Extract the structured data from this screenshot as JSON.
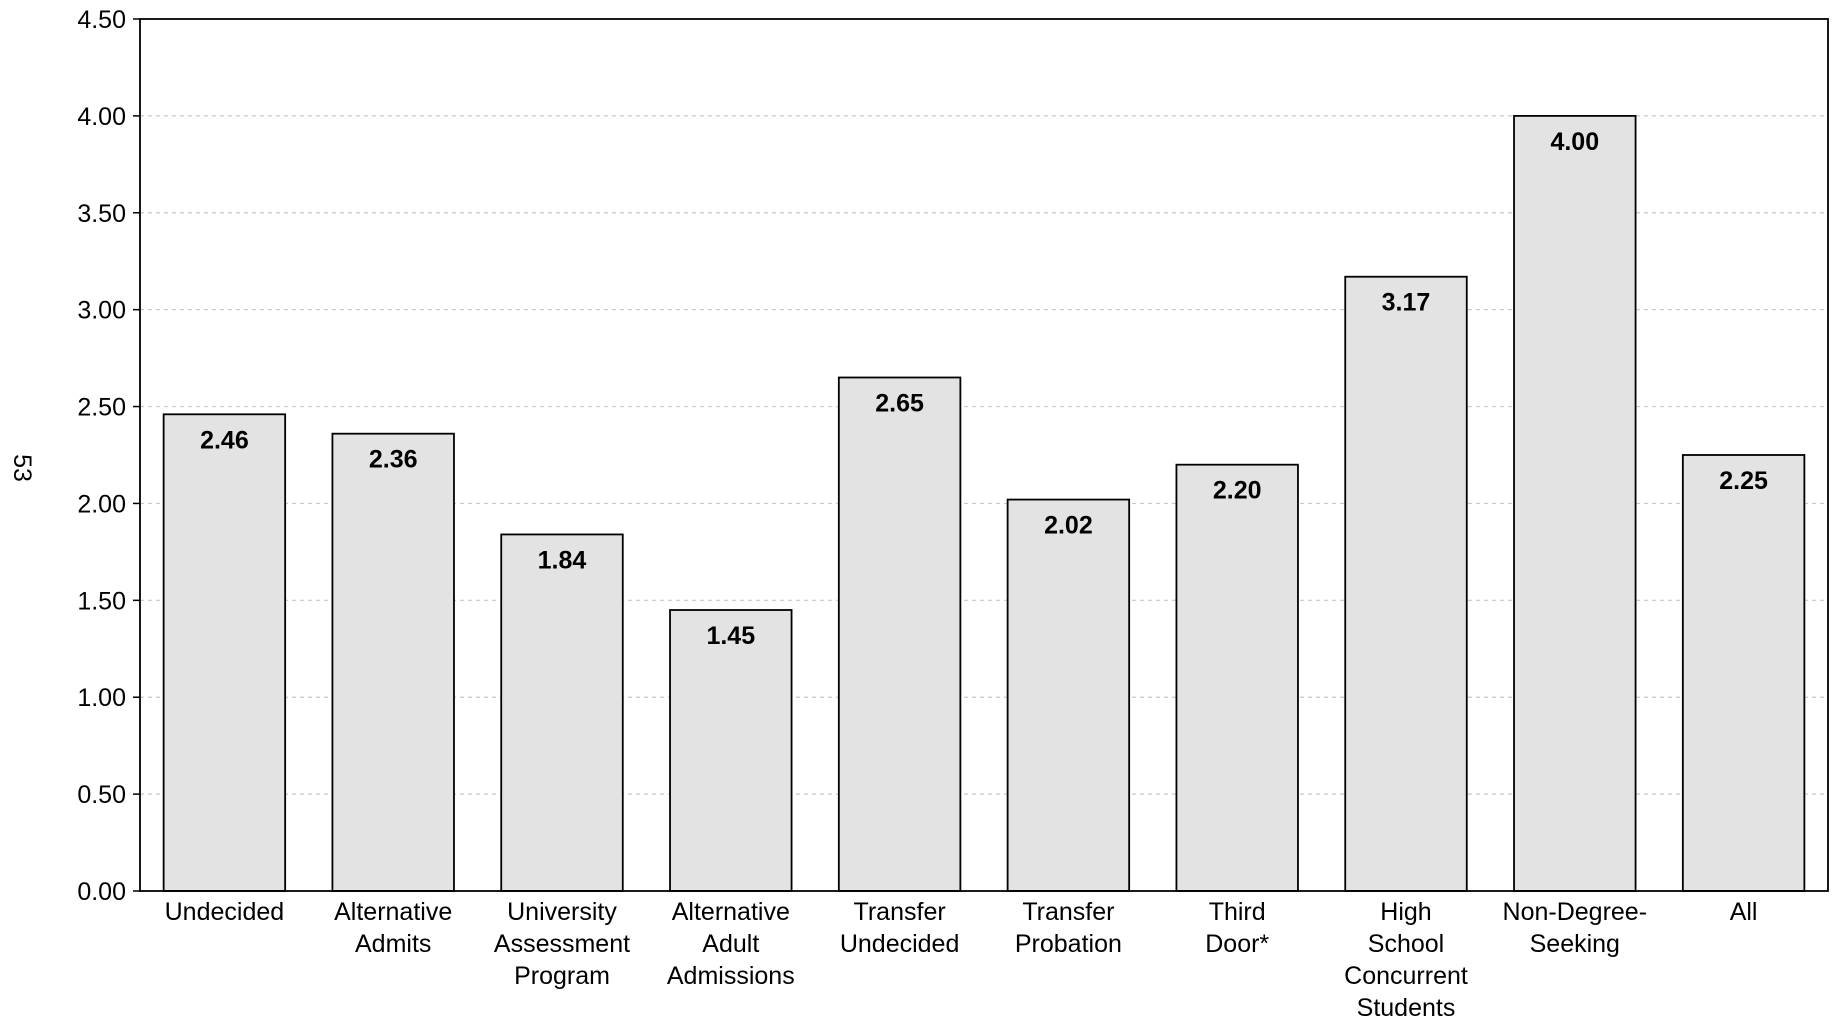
{
  "page_number": "53",
  "chart_data": {
    "type": "bar",
    "title": "",
    "xlabel": "",
    "ylabel": "",
    "categories": [
      [
        "Undecided"
      ],
      [
        "Alternative",
        "Admits"
      ],
      [
        "University",
        "Assessment",
        "Program"
      ],
      [
        "Alternative",
        "Adult",
        "Admissions"
      ],
      [
        "Transfer",
        "Undecided"
      ],
      [
        "Transfer",
        "Probation"
      ],
      [
        "Third",
        "Door*"
      ],
      [
        "High",
        "School",
        "Concurrent",
        "Students"
      ],
      [
        "Non-Degree-",
        "Seeking"
      ],
      [
        "All"
      ]
    ],
    "values": [
      2.46,
      2.36,
      1.84,
      1.45,
      2.65,
      2.02,
      2.2,
      3.17,
      4.0,
      2.25
    ],
    "value_labels": [
      "2.46",
      "2.36",
      "1.84",
      "1.45",
      "2.65",
      "2.02",
      "2.20",
      "3.17",
      "4.00",
      "2.25"
    ],
    "ylim": [
      0,
      4.5
    ],
    "y_ticks": [
      0,
      0.5,
      1.0,
      1.5,
      2.0,
      2.5,
      3.0,
      3.5,
      4.0,
      4.5
    ],
    "y_tick_labels": [
      "0.00",
      "0.50",
      "1.00",
      "1.50",
      "2.00",
      "2.50",
      "3.00",
      "3.50",
      "4.00",
      "4.50"
    ],
    "grid": true,
    "legend": "none",
    "colors": {
      "bar_fill": "#e3e3e3",
      "bar_stroke": "#000000",
      "grid": "#c8c8c8",
      "axis": "#000000"
    }
  }
}
